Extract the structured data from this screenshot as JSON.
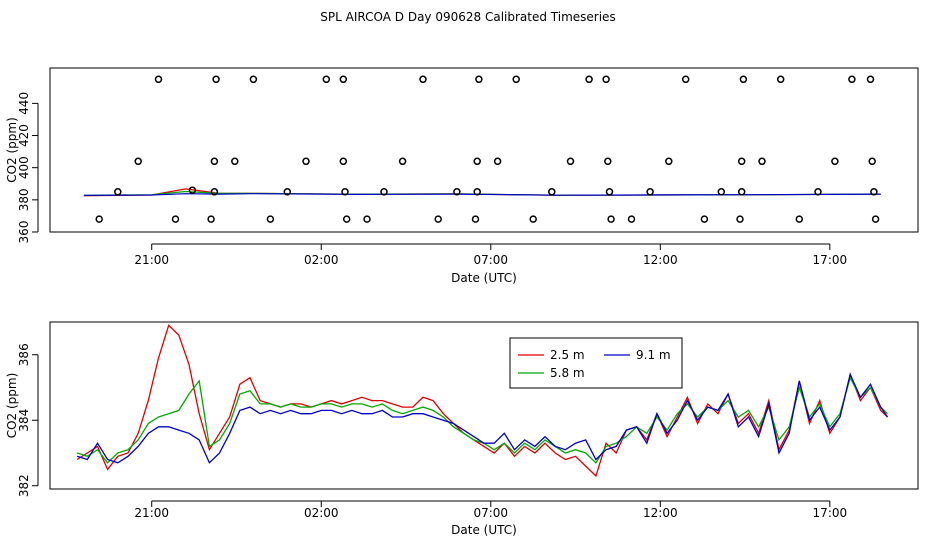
{
  "title": "SPL AIRCOA D  Day 090628  Calibrated Timeseries",
  "colors": {
    "red": "#dd0000",
    "green": "#00aa00",
    "blue": "#0000cc",
    "axis": "#000000"
  },
  "chart_data": [
    {
      "type": "scatter",
      "title": "",
      "xlabel": "Date (UTC)",
      "ylabel": "CO2 (ppm)",
      "x_unit": "hours since 00:00 UTC (negative = previous day)",
      "xlim": [
        -6.0,
        19.6
      ],
      "ylim": [
        360.0,
        462.0
      ],
      "xticks": [
        -3,
        2,
        7,
        12,
        17
      ],
      "xtick_labels": [
        "21:00",
        "02:00",
        "07:00",
        "12:00",
        "17:00"
      ],
      "yticks": [
        360,
        380,
        400,
        420,
        440
      ],
      "ytick_labels": [
        "360",
        "380",
        "400",
        "420",
        "440"
      ],
      "calibration_points": [
        {
          "x": -4.55,
          "y": 368
        },
        {
          "x": -4.0,
          "y": 385
        },
        {
          "x": -3.4,
          "y": 404
        },
        {
          "x": -2.8,
          "y": 455
        },
        {
          "x": -2.3,
          "y": 368
        },
        {
          "x": -1.8,
          "y": 386
        },
        {
          "x": -1.25,
          "y": 368
        },
        {
          "x": -1.15,
          "y": 385
        },
        {
          "x": -1.15,
          "y": 404
        },
        {
          "x": -1.1,
          "y": 455
        },
        {
          "x": -0.55,
          "y": 404
        },
        {
          "x": 0.0,
          "y": 455
        },
        {
          "x": 0.5,
          "y": 368
        },
        {
          "x": 1.0,
          "y": 385
        },
        {
          "x": 1.55,
          "y": 404
        },
        {
          "x": 2.15,
          "y": 455
        },
        {
          "x": 2.65,
          "y": 455
        },
        {
          "x": 2.65,
          "y": 404
        },
        {
          "x": 2.7,
          "y": 385
        },
        {
          "x": 2.75,
          "y": 368
        },
        {
          "x": 3.35,
          "y": 368
        },
        {
          "x": 3.85,
          "y": 385
        },
        {
          "x": 4.4,
          "y": 404
        },
        {
          "x": 5.0,
          "y": 455
        },
        {
          "x": 5.45,
          "y": 368
        },
        {
          "x": 6.0,
          "y": 385
        },
        {
          "x": 6.55,
          "y": 368
        },
        {
          "x": 6.6,
          "y": 385
        },
        {
          "x": 6.6,
          "y": 404
        },
        {
          "x": 6.65,
          "y": 455
        },
        {
          "x": 7.2,
          "y": 404
        },
        {
          "x": 7.75,
          "y": 455
        },
        {
          "x": 8.25,
          "y": 368
        },
        {
          "x": 8.8,
          "y": 385
        },
        {
          "x": 9.35,
          "y": 404
        },
        {
          "x": 9.9,
          "y": 455
        },
        {
          "x": 10.4,
          "y": 455
        },
        {
          "x": 10.45,
          "y": 404
        },
        {
          "x": 10.5,
          "y": 385
        },
        {
          "x": 10.55,
          "y": 368
        },
        {
          "x": 11.15,
          "y": 368
        },
        {
          "x": 11.7,
          "y": 385
        },
        {
          "x": 12.25,
          "y": 404
        },
        {
          "x": 12.75,
          "y": 455
        },
        {
          "x": 13.3,
          "y": 368
        },
        {
          "x": 13.8,
          "y": 385
        },
        {
          "x": 14.35,
          "y": 368
        },
        {
          "x": 14.4,
          "y": 385
        },
        {
          "x": 14.4,
          "y": 404
        },
        {
          "x": 14.45,
          "y": 455
        },
        {
          "x": 15.0,
          "y": 404
        },
        {
          "x": 15.55,
          "y": 455
        },
        {
          "x": 16.1,
          "y": 368
        },
        {
          "x": 16.65,
          "y": 385
        },
        {
          "x": 17.15,
          "y": 404
        },
        {
          "x": 17.65,
          "y": 455
        },
        {
          "x": 18.2,
          "y": 455
        },
        {
          "x": 18.25,
          "y": 404
        },
        {
          "x": 18.3,
          "y": 385
        },
        {
          "x": 18.35,
          "y": 368
        }
      ],
      "lines": [
        {
          "name": "2.5 m",
          "color": "#dd0000",
          "x": [
            -5.0,
            -3.0,
            -2.0,
            -1.0,
            0.0,
            3.0,
            6.0,
            9.0,
            12.0,
            15.0,
            18.5
          ],
          "y": [
            382.5,
            383.0,
            386.8,
            384.0,
            384.0,
            383.5,
            383.7,
            382.8,
            383.0,
            383.2,
            383.5
          ]
        },
        {
          "name": "5.8 m",
          "color": "#00aa00",
          "x": [
            -5.0,
            -3.0,
            -2.0,
            -1.0,
            0.0,
            3.0,
            6.0,
            9.0,
            12.0,
            15.0,
            18.5
          ],
          "y": [
            382.8,
            383.2,
            385.2,
            384.0,
            384.0,
            383.5,
            383.7,
            382.9,
            383.0,
            383.2,
            383.6
          ]
        },
        {
          "name": "9.1 m",
          "color": "#0000cc",
          "x": [
            -5.0,
            -3.0,
            -2.0,
            -1.0,
            0.0,
            3.0,
            6.0,
            9.0,
            12.0,
            15.0,
            18.5
          ],
          "y": [
            382.8,
            383.0,
            383.8,
            383.6,
            383.8,
            383.4,
            383.6,
            382.9,
            383.1,
            383.2,
            383.6
          ]
        }
      ]
    },
    {
      "type": "line",
      "title": "",
      "xlabel": "Date (UTC)",
      "ylabel": "CO2 (ppm)",
      "x_unit": "hours since 00:00 UTC (negative = previous day)",
      "xlim": [
        -6.0,
        19.6
      ],
      "ylim": [
        381.9,
        387.0
      ],
      "xticks": [
        -3,
        2,
        7,
        12,
        17
      ],
      "xtick_labels": [
        "21:00",
        "02:00",
        "07:00",
        "12:00",
        "17:00"
      ],
      "yticks": [
        382,
        384,
        386
      ],
      "ytick_labels": [
        "382",
        "384",
        "386"
      ],
      "legend": {
        "position": "top-center",
        "entries": [
          "2.5 m",
          "9.1 m",
          "5.8 m"
        ]
      },
      "x": [
        -5.2,
        -4.9,
        -4.6,
        -4.3,
        -4.0,
        -3.7,
        -3.4,
        -3.1,
        -2.8,
        -2.5,
        -2.2,
        -1.9,
        -1.6,
        -1.3,
        -1.0,
        -0.7,
        -0.4,
        -0.1,
        0.2,
        0.5,
        0.8,
        1.1,
        1.4,
        1.7,
        2.0,
        2.3,
        2.6,
        2.9,
        3.2,
        3.5,
        3.8,
        4.1,
        4.4,
        4.7,
        5.0,
        5.3,
        5.6,
        5.9,
        6.2,
        6.5,
        6.8,
        7.1,
        7.4,
        7.7,
        8.0,
        8.3,
        8.6,
        8.9,
        9.2,
        9.5,
        9.8,
        10.1,
        10.4,
        10.7,
        11.0,
        11.3,
        11.6,
        11.9,
        12.2,
        12.5,
        12.8,
        13.1,
        13.4,
        13.7,
        14.0,
        14.3,
        14.6,
        14.9,
        15.2,
        15.5,
        15.8,
        16.1,
        16.4,
        16.7,
        17.0,
        17.3,
        17.6,
        17.9,
        18.2,
        18.5,
        18.7
      ],
      "series": [
        {
          "name": "2.5 m",
          "values": [
            382.8,
            383.0,
            383.2,
            382.5,
            382.9,
            383.0,
            383.6,
            384.6,
            385.9,
            386.9,
            386.6,
            385.7,
            384.2,
            383.1,
            383.6,
            384.1,
            385.1,
            385.3,
            384.6,
            384.5,
            384.4,
            384.5,
            384.5,
            384.4,
            384.5,
            384.6,
            384.5,
            384.6,
            384.7,
            384.6,
            384.6,
            384.5,
            384.4,
            384.4,
            384.7,
            384.6,
            384.2,
            383.9,
            383.6,
            383.4,
            383.2,
            383.0,
            383.3,
            382.9,
            383.2,
            383.0,
            383.3,
            383.0,
            382.8,
            382.9,
            382.6,
            382.3,
            383.3,
            383.0,
            383.7,
            383.8,
            383.4,
            384.2,
            383.5,
            384.1,
            384.7,
            383.9,
            384.5,
            384.2,
            384.8,
            383.9,
            384.2,
            383.6,
            384.6,
            383.1,
            383.7,
            385.2,
            383.9,
            384.6,
            383.6,
            384.1,
            385.4,
            384.6,
            385.0,
            384.3,
            384.1
          ]
        },
        {
          "name": "5.8 m",
          "values": [
            383.0,
            382.9,
            383.1,
            382.7,
            383.0,
            383.1,
            383.4,
            383.9,
            384.1,
            384.2,
            384.3,
            384.8,
            385.2,
            383.2,
            383.4,
            383.9,
            384.8,
            384.9,
            384.5,
            384.5,
            384.4,
            384.5,
            384.4,
            384.4,
            384.5,
            384.5,
            384.4,
            384.5,
            384.5,
            384.4,
            384.5,
            384.3,
            384.2,
            384.3,
            384.4,
            384.3,
            384.1,
            383.8,
            383.6,
            383.4,
            383.3,
            383.1,
            383.3,
            383.0,
            383.3,
            383.1,
            383.4,
            383.2,
            383.0,
            383.1,
            383.0,
            382.7,
            383.2,
            383.3,
            383.5,
            383.8,
            383.6,
            384.1,
            383.7,
            384.2,
            384.5,
            384.1,
            384.4,
            384.3,
            384.6,
            384.1,
            384.3,
            383.8,
            384.4,
            383.4,
            383.8,
            385.0,
            384.1,
            384.5,
            383.8,
            384.2,
            385.3,
            384.7,
            385.0,
            384.4,
            384.2
          ]
        },
        {
          "name": "9.1 m",
          "values": [
            382.9,
            382.8,
            383.3,
            382.8,
            382.7,
            382.9,
            383.2,
            383.6,
            383.8,
            383.8,
            383.7,
            383.6,
            383.4,
            382.7,
            383.0,
            383.6,
            384.3,
            384.4,
            384.2,
            384.3,
            384.2,
            384.3,
            384.2,
            384.2,
            384.3,
            384.3,
            384.2,
            384.3,
            384.2,
            384.2,
            384.3,
            384.1,
            384.1,
            384.2,
            384.2,
            384.1,
            384.0,
            383.9,
            383.7,
            383.5,
            383.3,
            383.3,
            383.6,
            383.1,
            383.4,
            383.2,
            383.5,
            383.2,
            383.1,
            383.3,
            383.4,
            382.8,
            383.1,
            383.2,
            383.7,
            383.8,
            383.3,
            384.2,
            383.6,
            384.0,
            384.6,
            384.0,
            384.4,
            384.3,
            384.8,
            383.8,
            384.1,
            383.5,
            384.5,
            383.0,
            383.6,
            385.2,
            384.0,
            384.4,
            383.7,
            384.1,
            385.4,
            384.7,
            385.1,
            384.4,
            384.1
          ]
        }
      ]
    }
  ]
}
